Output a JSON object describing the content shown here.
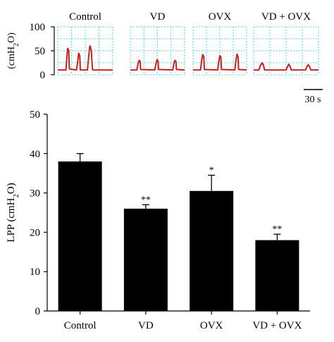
{
  "colors": {
    "trace": "#c8201e",
    "grid": "#58d3e8",
    "bar": "#000000",
    "axis": "#000000"
  },
  "chart_data": [
    {
      "type": "line",
      "ylabel_prefix": "(cmH",
      "ylabel_sub": "2",
      "ylabel_suffix": "O)",
      "ylim": [
        0,
        100
      ],
      "yticks": [
        0,
        50,
        100
      ],
      "grid": true,
      "time_window_s": 100,
      "scale_bar_label": "30 s",
      "panels": [
        {
          "name": "Control",
          "t": [
            0,
            15,
            16,
            18,
            20,
            21,
            34,
            36,
            38,
            40,
            41,
            54,
            56,
            58,
            59,
            61,
            63,
            64,
            100
          ],
          "p": [
            10,
            10,
            30,
            55,
            50,
            12,
            10,
            25,
            45,
            40,
            10,
            10,
            35,
            58,
            60,
            50,
            12,
            10,
            10
          ]
        },
        {
          "name": "VD",
          "t": [
            0,
            12,
            14,
            16,
            18,
            19,
            45,
            47,
            49,
            51,
            52,
            78,
            80,
            82,
            84,
            85,
            100
          ],
          "p": [
            10,
            10,
            22,
            30,
            28,
            11,
            10,
            22,
            31,
            29,
            11,
            10,
            22,
            30,
            28,
            11,
            10
          ]
        },
        {
          "name": "OVX",
          "t": [
            0,
            14,
            16,
            18,
            20,
            21,
            46,
            48,
            50,
            52,
            53,
            78,
            80,
            82,
            84,
            85,
            100
          ],
          "p": [
            10,
            10,
            30,
            42,
            38,
            11,
            10,
            28,
            40,
            36,
            11,
            10,
            30,
            43,
            38,
            11,
            10
          ]
        },
        {
          "name": "VD + OVX",
          "t": [
            0,
            8,
            10,
            13,
            15,
            17,
            50,
            52,
            54,
            56,
            58,
            80,
            82,
            84,
            86,
            88,
            100
          ],
          "p": [
            10,
            10,
            18,
            25,
            20,
            10,
            10,
            16,
            22,
            18,
            10,
            10,
            16,
            21,
            18,
            10,
            10
          ]
        }
      ]
    },
    {
      "type": "bar",
      "categories": [
        "Control",
        "VD",
        "OVX",
        "VD + OVX"
      ],
      "values": [
        38,
        26,
        30.5,
        18
      ],
      "errors": [
        2,
        1,
        4,
        1.5
      ],
      "significance": [
        "",
        "**",
        "*",
        "**"
      ],
      "ylabel_prefix": "LPP (cmH",
      "ylabel_sub": "2",
      "ylabel_suffix": "O)",
      "ylim": [
        0,
        50
      ],
      "yticks": [
        0,
        10,
        20,
        30,
        40,
        50
      ]
    }
  ]
}
